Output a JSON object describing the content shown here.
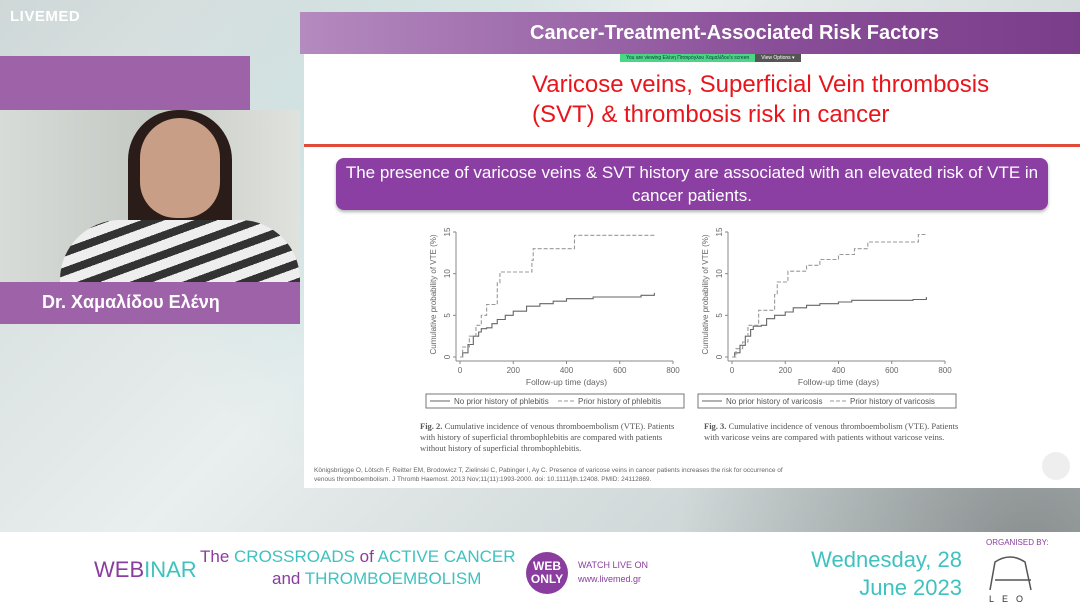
{
  "brand": {
    "logo": "LIVEMED"
  },
  "header": {
    "title": "Cancer-Treatment-Associated Risk Factors"
  },
  "speaker": {
    "name": "Dr. Χαμαλίδου Ελένη"
  },
  "screenshare": {
    "viewing_text": "You are viewing Ελένη Πιτσιρόγλου Χαμαλίδου's screen",
    "view_options": "View Options"
  },
  "slide": {
    "title_line1": "Varicose veins,  Superficial Vein thrombosis",
    "title_line2": "(SVT) & thrombosis risk in cancer",
    "key_message": "The presence of varicose veins & SVT history are associated with an elevated risk of VTE in cancer patients.",
    "caption1_label": "Fig. 2.",
    "caption1": "Cumulative incidence of venous thromboembolism (VTE). Patients with history of superficial thrombophlebitis are compared with patients without history of superficial thrombophlebitis.",
    "caption2_label": "Fig. 3.",
    "caption2": "Cumulative incidence of venous thromboembolism (VTE). Patients with varicose veins are compared with patients without varicose veins.",
    "reference": "Königsbrügge O, Lötsch F, Reitter EM, Brodowicz T, Zielinski C, Pabinger I, Ay C. Presence of varicose veins in cancer patients increases the risk for occurrence of venous thromboembolism. J Thromb Haemost. 2013 Nov;11(11):1993-2000. doi: 10.1111/jth.12408. PMID: 24112869."
  },
  "chart_data": [
    {
      "type": "line",
      "step": true,
      "xlabel": "Follow-up time (days)",
      "ylabel": "Cumulative probability of VTE (%)",
      "xlim": [
        0,
        800
      ],
      "ylim": [
        0,
        15
      ],
      "xticks": [
        "0",
        "200",
        "400",
        "600",
        "800"
      ],
      "yticks": [
        "0",
        "5",
        "10",
        "15"
      ],
      "legend": "bottom",
      "series": [
        {
          "name": "No prior history of phlebitis",
          "style": "solid",
          "x": [
            0,
            10,
            30,
            50,
            70,
            80,
            100,
            120,
            140,
            170,
            200,
            250,
            300,
            350,
            400,
            500,
            680,
            730
          ],
          "y": [
            0,
            0.5,
            1.5,
            2.5,
            3,
            3.4,
            3.5,
            4,
            4.5,
            5,
            5.5,
            6.1,
            6.4,
            6.7,
            7,
            7.2,
            7.4,
            7.7
          ]
        },
        {
          "name": "Prior history of phlebitis",
          "style": "dashed",
          "x": [
            0,
            10,
            35,
            60,
            80,
            100,
            140,
            150,
            270,
            275,
            430,
            730
          ],
          "y": [
            0,
            1.2,
            2.5,
            3.8,
            5,
            6.3,
            8.9,
            10.2,
            11.6,
            13,
            14.6,
            14.6
          ]
        }
      ]
    },
    {
      "type": "line",
      "step": true,
      "xlabel": "Follow-up time (days)",
      "ylabel": "Cumulative probability of VTE (%)",
      "xlim": [
        0,
        800
      ],
      "ylim": [
        0,
        15
      ],
      "xticks": [
        "0",
        "200",
        "400",
        "600",
        "800"
      ],
      "yticks": [
        "0",
        "5",
        "10",
        "15"
      ],
      "legend": "bottom",
      "series": [
        {
          "name": "No prior history of varicosis",
          "style": "solid",
          "x": [
            0,
            10,
            30,
            50,
            70,
            80,
            110,
            130,
            160,
            200,
            230,
            280,
            330,
            400,
            450,
            680,
            730
          ],
          "y": [
            0,
            0.5,
            1.4,
            2.5,
            3.3,
            3.7,
            3.8,
            4.6,
            5,
            5.4,
            5.9,
            6.2,
            6.4,
            6.6,
            6.8,
            6.9,
            7.2
          ]
        },
        {
          "name": "Prior history of varicosis",
          "style": "dashed",
          "x": [
            0,
            15,
            40,
            60,
            100,
            160,
            170,
            210,
            280,
            330,
            400,
            460,
            510,
            700,
            730
          ],
          "y": [
            0,
            1,
            1.8,
            3.8,
            5.6,
            7.5,
            9,
            10.3,
            11,
            11.7,
            12.3,
            13,
            13.8,
            14.7,
            14.7
          ]
        }
      ]
    }
  ],
  "footer": {
    "webinar_a": "WEB",
    "webinar_b": "INAR",
    "line1_a": "The ",
    "line1_b": "CROSSROADS ",
    "line1_c": "of ",
    "line1_d": "ACTIVE CANCER",
    "line2_a": "and ",
    "line2_b": "THROMBOEMBOLISM",
    "web_only": "WEB ONLY",
    "watch": "WATCH LIVE ON",
    "url": "www.livemed.gr",
    "date1": "Wednesday, 28",
    "date2": "June 2023",
    "organised": "ORGANISED BY:",
    "sponsor": "LEO"
  }
}
